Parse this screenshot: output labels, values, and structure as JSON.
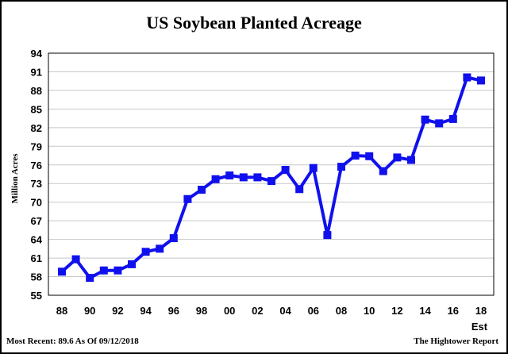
{
  "header": {
    "title": "US Soybean Planted Acreage"
  },
  "footer": {
    "left": "Most Recent: 89.6 As Of 09/12/2018",
    "right": "The Hightower Report"
  },
  "chart_data": {
    "type": "line",
    "title": "US Soybean Planted Acreage",
    "xlabel": "",
    "ylabel": "Million Acres",
    "x_tick_labels": [
      "88",
      "90",
      "92",
      "94",
      "96",
      "98",
      "00",
      "02",
      "04",
      "06",
      "08",
      "10",
      "12",
      "14",
      "16",
      "18"
    ],
    "x_extra_label": "Est",
    "y_ticks": [
      55,
      58,
      61,
      64,
      67,
      70,
      73,
      76,
      79,
      82,
      85,
      88,
      91,
      94
    ],
    "ylim": [
      55,
      94
    ],
    "grid": true,
    "colors": {
      "line": "#1010ee",
      "grid": "#c8c8c8"
    },
    "series": [
      {
        "x": [
          "88",
          "89",
          "90",
          "91",
          "92",
          "93",
          "94",
          "95",
          "96",
          "97",
          "98",
          "99",
          "00",
          "01",
          "02",
          "03",
          "04",
          "05",
          "06",
          "07",
          "08",
          "09",
          "10",
          "11",
          "12",
          "13",
          "14",
          "15",
          "16",
          "17",
          "18"
        ],
        "values": [
          58.8,
          60.8,
          57.8,
          59.0,
          59.0,
          60.0,
          62.0,
          62.5,
          64.2,
          70.5,
          72.0,
          73.7,
          74.3,
          74.0,
          74.0,
          73.4,
          75.2,
          72.1,
          75.5,
          64.7,
          75.7,
          77.5,
          77.4,
          75.0,
          77.2,
          76.8,
          83.3,
          82.7,
          83.4,
          90.1,
          89.6
        ]
      }
    ]
  }
}
